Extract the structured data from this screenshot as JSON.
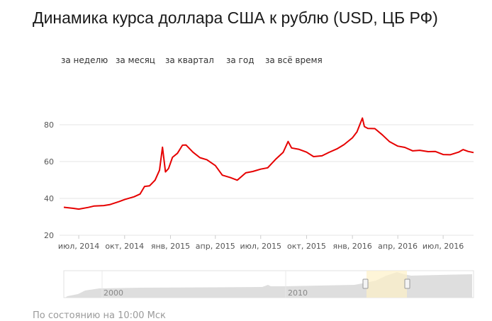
{
  "title": "Динамика курса доллара США к рублю (USD, ЦБ РФ)",
  "periods": [
    "за неделю",
    "за месяц",
    "за квартал",
    "за год",
    "за всё время"
  ],
  "footer": "По состоянию на 10:00 Мск",
  "colors": {
    "line": "#e60000",
    "grid": "#e6e6e6",
    "axis_text": "#555555",
    "navigator_fill": "#dedede",
    "navigator_selection": "#fdf1c7"
  },
  "chart_data": {
    "type": "line",
    "title": "Динамика курса доллара США к рублю (USD, ЦБ РФ)",
    "xlabel": "",
    "ylabel": "",
    "ylim": [
      20,
      90
    ],
    "yticks": [
      20,
      40,
      60,
      80
    ],
    "xticks": [
      "июл, 2014",
      "окт, 2014",
      "янв, 2015",
      "апр, 2015",
      "июл, 2015",
      "окт, 2015",
      "янв, 2016",
      "апр, 2016",
      "июл, 2016"
    ],
    "grid": true,
    "series": [
      {
        "x": [
          "2014-06-01",
          "2014-06-20",
          "2014-07-01",
          "2014-07-20",
          "2014-08-01",
          "2014-08-20",
          "2014-09-01",
          "2014-09-20",
          "2014-10-01",
          "2014-10-20",
          "2014-11-01",
          "2014-11-10",
          "2014-11-20",
          "2014-12-01",
          "2014-12-10",
          "2014-12-16",
          "2014-12-22",
          "2014-12-28",
          "2015-01-05",
          "2015-01-15",
          "2015-01-25",
          "2015-02-01",
          "2015-02-15",
          "2015-03-01",
          "2015-03-15",
          "2015-04-01",
          "2015-04-15",
          "2015-05-01",
          "2015-05-15",
          "2015-06-01",
          "2015-06-15",
          "2015-07-01",
          "2015-07-15",
          "2015-08-01",
          "2015-08-15",
          "2015-08-25",
          "2015-09-01",
          "2015-09-15",
          "2015-10-01",
          "2015-10-15",
          "2015-11-01",
          "2015-11-15",
          "2015-12-01",
          "2015-12-15",
          "2016-01-01",
          "2016-01-10",
          "2016-01-21",
          "2016-01-25",
          "2016-02-01",
          "2016-02-15",
          "2016-03-01",
          "2016-03-15",
          "2016-04-01",
          "2016-04-15",
          "2016-05-01",
          "2016-05-15",
          "2016-06-01",
          "2016-06-15",
          "2016-07-01",
          "2016-07-15",
          "2016-08-01",
          "2016-08-10",
          "2016-08-20",
          "2016-08-31"
        ],
        "values": [
          35.2,
          34.6,
          34.2,
          35.1,
          35.9,
          36.1,
          36.6,
          38.3,
          39.4,
          40.9,
          42.4,
          46.5,
          46.8,
          49.9,
          55.3,
          67.8,
          54.4,
          56.2,
          62.3,
          64.5,
          68.9,
          69.0,
          65.1,
          62.1,
          61.0,
          57.8,
          52.6,
          51.3,
          49.9,
          53.9,
          54.6,
          55.9,
          56.6,
          61.5,
          65.0,
          70.9,
          67.4,
          66.7,
          65.1,
          62.7,
          63.1,
          65.0,
          66.9,
          69.2,
          72.9,
          76.1,
          83.6,
          79.0,
          78.0,
          77.9,
          74.5,
          70.9,
          68.4,
          67.7,
          65.8,
          66.1,
          65.4,
          65.5,
          63.8,
          63.7,
          65.1,
          66.5,
          65.5,
          64.9
        ]
      }
    ]
  }
}
